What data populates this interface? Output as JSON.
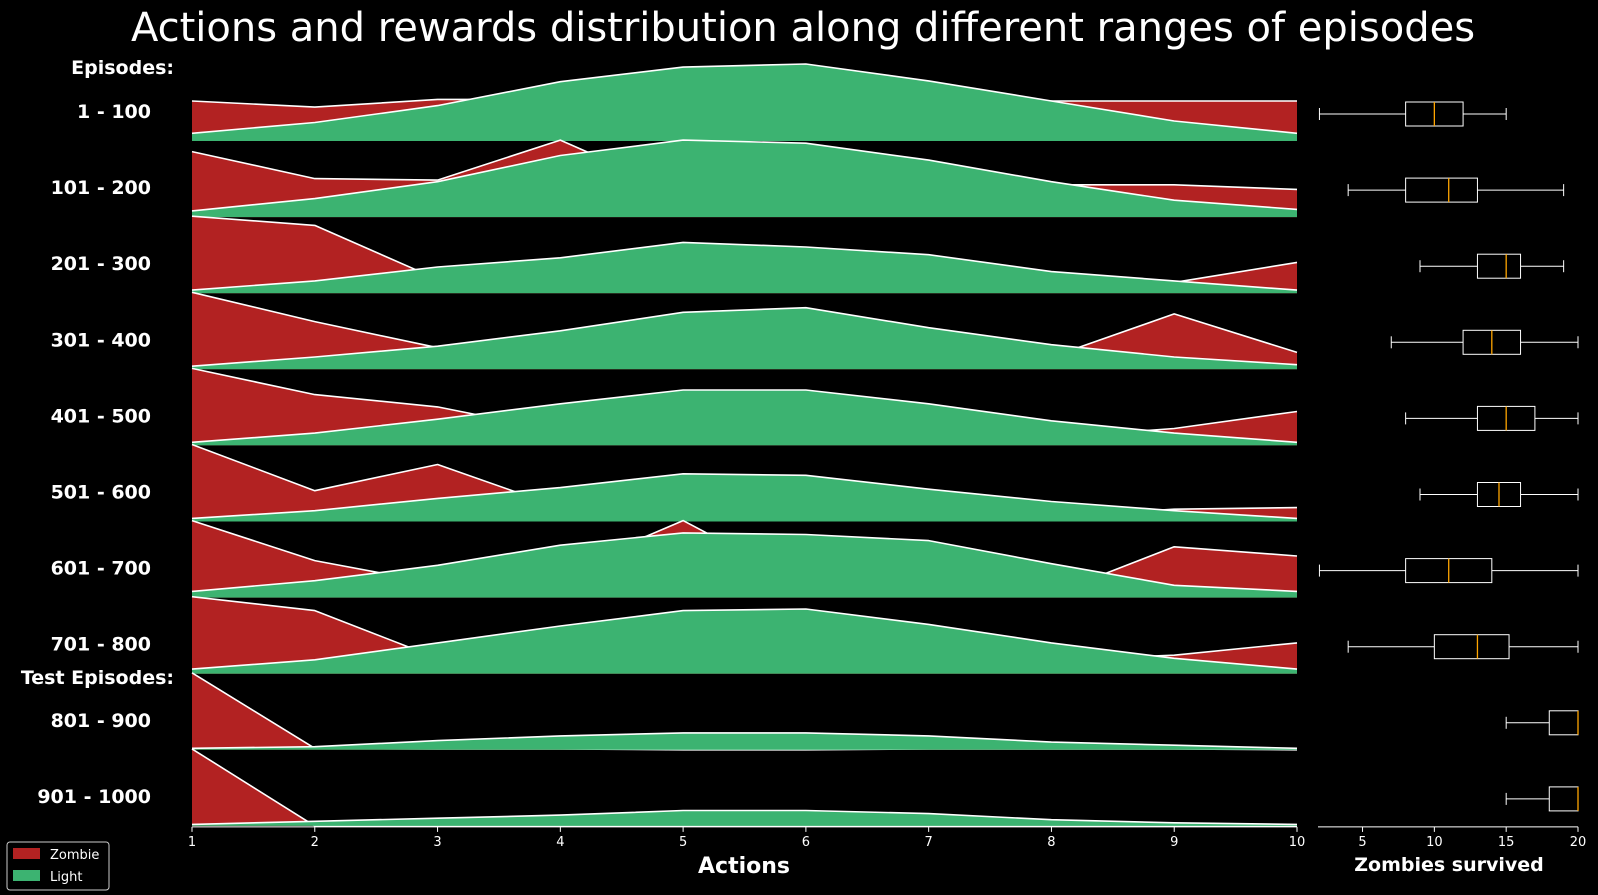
{
  "title": "Actions and rewards distribution along different ranges of episodes",
  "colors": {
    "background": "#000000",
    "zombie": "#b22222",
    "light": "#3cb371",
    "outline": "#ffffff",
    "median": "#ffa500"
  },
  "section_labels": [
    "Episodes:",
    "Test Episodes:"
  ],
  "chart_data": [
    {
      "type": "area",
      "title": "Actions and rewards distribution along different ranges of episodes",
      "xlabel": "Actions",
      "ylabel": "",
      "x": [
        1,
        2,
        3,
        4,
        5,
        6,
        7,
        8,
        9,
        10
      ],
      "xlim": [
        1,
        10
      ],
      "legend": {
        "placement": "bottom-left",
        "entries": [
          "Zombie",
          "Light"
        ]
      },
      "grid": false,
      "series_names": [
        "Zombie",
        "Light"
      ],
      "rows": [
        {
          "label": "1 - 100",
          "zombie": [
            0.52,
            0.44,
            0.54,
            0.54,
            0.44,
            0.44,
            0.5,
            0.52,
            0.52,
            0.52
          ],
          "light": [
            0.1,
            0.24,
            0.46,
            0.77,
            0.96,
            1.0,
            0.78,
            0.52,
            0.26,
            0.1
          ]
        },
        {
          "label": "101 - 200",
          "zombie": [
            0.85,
            0.5,
            0.48,
            1.0,
            0.3,
            0.32,
            0.36,
            0.42,
            0.42,
            0.36
          ],
          "light": [
            0.08,
            0.24,
            0.46,
            0.8,
            1.0,
            0.96,
            0.74,
            0.46,
            0.22,
            0.1
          ]
        },
        {
          "label": "201 - 300",
          "zombie": [
            1.0,
            0.88,
            0.18,
            0.12,
            0.14,
            0.12,
            0.1,
            0.14,
            0.14,
            0.4
          ],
          "light": [
            0.04,
            0.16,
            0.34,
            0.46,
            0.66,
            0.6,
            0.5,
            0.28,
            0.16,
            0.04
          ]
        },
        {
          "label": "301 - 400",
          "zombie": [
            1.0,
            0.62,
            0.28,
            0.12,
            0.1,
            0.1,
            0.16,
            0.16,
            0.72,
            0.22
          ],
          "light": [
            0.04,
            0.16,
            0.3,
            0.5,
            0.74,
            0.8,
            0.54,
            0.32,
            0.16,
            0.06
          ]
        },
        {
          "label": "401 - 500",
          "zombie": [
            1.0,
            0.66,
            0.5,
            0.18,
            0.08,
            0.08,
            0.06,
            0.1,
            0.22,
            0.44
          ],
          "light": [
            0.04,
            0.16,
            0.34,
            0.54,
            0.72,
            0.72,
            0.54,
            0.32,
            0.16,
            0.04
          ]
        },
        {
          "label": "501 - 600",
          "zombie": [
            1.0,
            0.4,
            0.74,
            0.18,
            0.04,
            0.14,
            0.06,
            0.06,
            0.16,
            0.18
          ],
          "light": [
            0.04,
            0.14,
            0.3,
            0.44,
            0.62,
            0.6,
            0.42,
            0.26,
            0.14,
            0.04
          ]
        },
        {
          "label": "601 - 700",
          "zombie": [
            1.0,
            0.48,
            0.18,
            0.32,
            1.0,
            0.16,
            0.1,
            0.04,
            0.66,
            0.54
          ],
          "light": [
            0.08,
            0.22,
            0.42,
            0.68,
            0.84,
            0.82,
            0.74,
            0.44,
            0.16,
            0.08
          ]
        },
        {
          "label": "701 - 800",
          "zombie": [
            1.0,
            0.82,
            0.2,
            0.28,
            0.06,
            0.72,
            0.18,
            0.18,
            0.24,
            0.4
          ],
          "light": [
            0.06,
            0.18,
            0.4,
            0.62,
            0.82,
            0.84,
            0.64,
            0.4,
            0.2,
            0.06
          ]
        },
        {
          "label": "801 - 900",
          "zombie": [
            1.0,
            0.02,
            0.01,
            0.01,
            0.0,
            0.0,
            0.01,
            0.01,
            0.01,
            0.0
          ],
          "light": [
            0.02,
            0.04,
            0.12,
            0.18,
            0.22,
            0.22,
            0.18,
            0.1,
            0.06,
            0.02
          ]
        },
        {
          "label": "901 - 1000",
          "zombie": [
            1.0,
            0.0,
            0.0,
            0.0,
            0.0,
            0.0,
            0.0,
            0.0,
            0.0,
            0.0
          ],
          "light": [
            0.02,
            0.06,
            0.1,
            0.14,
            0.2,
            0.2,
            0.16,
            0.08,
            0.04,
            0.02
          ]
        }
      ]
    },
    {
      "type": "box",
      "title": "",
      "xlabel": "Zombies survived",
      "ylabel": "",
      "xlim": [
        1.9,
        20
      ],
      "xticks": [
        5,
        10,
        15,
        20
      ],
      "grid": false,
      "boxes": [
        {
          "row": "1 - 100",
          "whisker_low": 2,
          "q1": 8,
          "median": 10,
          "q3": 12,
          "whisker_high": 15
        },
        {
          "row": "101 - 200",
          "whisker_low": 4,
          "q1": 8,
          "median": 11,
          "q3": 13,
          "whisker_high": 19
        },
        {
          "row": "201 - 300",
          "whisker_low": 9,
          "q1": 13,
          "median": 15,
          "q3": 16,
          "whisker_high": 19
        },
        {
          "row": "301 - 400",
          "whisker_low": 7,
          "q1": 12,
          "median": 14,
          "q3": 16,
          "whisker_high": 20
        },
        {
          "row": "401 - 500",
          "whisker_low": 8,
          "q1": 13,
          "median": 15,
          "q3": 17,
          "whisker_high": 20
        },
        {
          "row": "501 - 600",
          "whisker_low": 9,
          "q1": 13,
          "median": 14.5,
          "q3": 16,
          "whisker_high": 20
        },
        {
          "row": "601 - 700",
          "whisker_low": 2,
          "q1": 8,
          "median": 11,
          "q3": 14,
          "whisker_high": 20
        },
        {
          "row": "701 - 800",
          "whisker_low": 4,
          "q1": 10,
          "median": 13,
          "q3": 15.2,
          "whisker_high": 20
        },
        {
          "row": "801 - 900",
          "whisker_low": 15,
          "q1": 18,
          "median": 20,
          "q3": 20,
          "whisker_high": 20
        },
        {
          "row": "901 - 1000",
          "whisker_low": 15,
          "q1": 18,
          "median": 20,
          "q3": 20,
          "whisker_high": 20
        }
      ]
    }
  ]
}
